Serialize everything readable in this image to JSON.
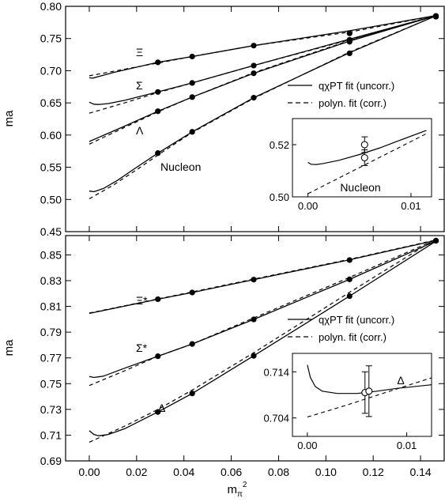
{
  "chart_data": [
    {
      "type": "line",
      "ylabel": "ma",
      "xlim": [
        -0.01,
        0.15
      ],
      "ylim": [
        0.45,
        0.8
      ],
      "yticks": [
        "0.45",
        "0.50",
        "0.55",
        "0.60",
        "0.65",
        "0.70",
        "0.75",
        "0.80"
      ],
      "legend_position": "right",
      "legend": [
        {
          "style": "solid",
          "label": "qχPT fit (uncorr.)"
        },
        {
          "style": "dashed",
          "label": "polyn. fit (corr.)"
        }
      ],
      "points_x": [
        0.029,
        0.0435,
        0.0695,
        0.11,
        0.1465
      ],
      "series": [
        {
          "name": "Ξ",
          "points_y": [
            0.713,
            0.722,
            0.739,
            0.758,
            0.784
          ],
          "solid": [
            [
              0.0,
              0.689
            ],
            [
              0.0015,
              0.6885
            ],
            [
              0.01,
              0.697
            ],
            [
              0.029,
              0.713
            ],
            [
              0.0435,
              0.722
            ],
            [
              0.0695,
              0.739
            ],
            [
              0.11,
              0.762
            ],
            [
              0.147,
              0.786
            ]
          ],
          "dashed": [
            [
              0.0,
              0.692
            ],
            [
              0.029,
              0.712
            ],
            [
              0.0435,
              0.722
            ],
            [
              0.0695,
              0.739
            ],
            [
              0.11,
              0.76
            ],
            [
              0.147,
              0.786
            ]
          ]
        },
        {
          "name": "Σ",
          "points_y": [
            0.667,
            0.681,
            0.708,
            0.748,
            0.785
          ],
          "solid": [
            [
              0.0,
              0.651
            ],
            [
              0.002,
              0.648
            ],
            [
              0.004,
              0.6475
            ],
            [
              0.008,
              0.649
            ],
            [
              0.015,
              0.654
            ],
            [
              0.029,
              0.667
            ],
            [
              0.0435,
              0.681
            ],
            [
              0.0695,
              0.708
            ],
            [
              0.11,
              0.749
            ],
            [
              0.147,
              0.786
            ]
          ],
          "dashed": [
            [
              0.0,
              0.634
            ],
            [
              0.015,
              0.65
            ],
            [
              0.029,
              0.666
            ],
            [
              0.0435,
              0.681
            ],
            [
              0.0695,
              0.708
            ],
            [
              0.11,
              0.748
            ],
            [
              0.147,
              0.786
            ]
          ]
        },
        {
          "name": "Λ",
          "points_y": [
            0.637,
            0.659,
            0.696,
            0.745,
            0.785
          ],
          "solid": [
            [
              0.0,
              0.59
            ],
            [
              0.015,
              0.614
            ],
            [
              0.029,
              0.637
            ],
            [
              0.0435,
              0.659
            ],
            [
              0.0695,
              0.696
            ],
            [
              0.11,
              0.746
            ],
            [
              0.147,
              0.786
            ]
          ],
          "dashed": [
            [
              0.0,
              0.586
            ],
            [
              0.015,
              0.612
            ],
            [
              0.029,
              0.636
            ],
            [
              0.0435,
              0.659
            ],
            [
              0.0695,
              0.697
            ],
            [
              0.11,
              0.747
            ],
            [
              0.147,
              0.786
            ]
          ]
        },
        {
          "name": "Nucleon",
          "points_y": [
            0.572,
            0.605,
            0.658,
            0.727,
            0.784
          ],
          "solid": [
            [
              0.0,
              0.513
            ],
            [
              0.002,
              0.512
            ],
            [
              0.006,
              0.517
            ],
            [
              0.012,
              0.53
            ],
            [
              0.02,
              0.55
            ],
            [
              0.029,
              0.572
            ],
            [
              0.0435,
              0.605
            ],
            [
              0.0695,
              0.658
            ],
            [
              0.11,
              0.728
            ],
            [
              0.147,
              0.786
            ]
          ],
          "dashed": [
            [
              0.0,
              0.501
            ],
            [
              0.01,
              0.522
            ],
            [
              0.02,
              0.546
            ],
            [
              0.029,
              0.569
            ],
            [
              0.0435,
              0.604
            ],
            [
              0.0695,
              0.657
            ],
            [
              0.11,
              0.729
            ],
            [
              0.147,
              0.786
            ]
          ]
        }
      ],
      "inset": {
        "label": "Nucleon",
        "xlim": [
          -0.0015,
          0.012
        ],
        "ylim": [
          0.5,
          0.53
        ],
        "xticks": [
          "0.00",
          "0.01"
        ],
        "yticks": [
          "0.50",
          "0.52"
        ],
        "solid": [
          [
            0.0,
            0.5132
          ],
          [
            0.0003,
            0.5125
          ],
          [
            0.0008,
            0.5124
          ],
          [
            0.0015,
            0.5128
          ],
          [
            0.003,
            0.514
          ],
          [
            0.005,
            0.5162
          ],
          [
            0.007,
            0.5188
          ],
          [
            0.009,
            0.5218
          ],
          [
            0.0115,
            0.5255
          ]
        ],
        "dashed": [
          [
            0.0,
            0.5012
          ],
          [
            0.004,
            0.5092
          ],
          [
            0.008,
            0.5172
          ],
          [
            0.0115,
            0.5242
          ]
        ],
        "points": [
          {
            "x": 0.0055,
            "y": 0.52,
            "err": 0.003
          },
          {
            "x": 0.0055,
            "y": 0.515,
            "err": 0.003
          }
        ]
      }
    },
    {
      "type": "line",
      "xlabel": "mπ²",
      "ylabel": "ma",
      "xlim": [
        -0.01,
        0.15
      ],
      "ylim": [
        0.69,
        0.865
      ],
      "xticks": [
        "0.00",
        "0.02",
        "0.04",
        "0.06",
        "0.08",
        "0.10",
        "0.12",
        "0.14"
      ],
      "yticks": [
        "0.69",
        "0.71",
        "0.73",
        "0.75",
        "0.77",
        "0.79",
        "0.81",
        "0.83",
        "0.85"
      ],
      "legend_position": "right",
      "legend": [
        {
          "style": "solid",
          "label": "qχPT fit (uncorr.)"
        },
        {
          "style": "dashed",
          "label": "polyn. fit (corr.)"
        }
      ],
      "points_x": [
        0.029,
        0.0435,
        0.0695,
        0.11,
        0.1465
      ],
      "series": [
        {
          "name": "Ξ*",
          "points_y": [
            0.8156,
            0.8208,
            0.8308,
            0.846,
            0.861
          ],
          "solid": [
            [
              0.0,
              0.8045
            ],
            [
              0.029,
              0.8156
            ],
            [
              0.0435,
              0.8208
            ],
            [
              0.0695,
              0.8308
            ],
            [
              0.11,
              0.8462
            ],
            [
              0.147,
              0.8615
            ]
          ],
          "dashed": [
            [
              0.0,
              0.8048
            ],
            [
              0.029,
              0.8158
            ],
            [
              0.0435,
              0.8212
            ],
            [
              0.0695,
              0.8312
            ],
            [
              0.11,
              0.8466
            ],
            [
              0.147,
              0.8618
            ]
          ]
        },
        {
          "name": "Σ*",
          "points_y": [
            0.7713,
            0.7808,
            0.7999,
            0.831,
            0.861
          ],
          "solid": [
            [
              0.0,
              0.7555
            ],
            [
              0.002,
              0.7548
            ],
            [
              0.006,
              0.7558
            ],
            [
              0.015,
              0.762
            ],
            [
              0.029,
              0.7713
            ],
            [
              0.0435,
              0.7808
            ],
            [
              0.0695,
              0.7999
            ],
            [
              0.11,
              0.831
            ],
            [
              0.147,
              0.8612
            ]
          ],
          "dashed": [
            [
              0.0,
              0.7485
            ],
            [
              0.015,
              0.76
            ],
            [
              0.029,
              0.7713
            ],
            [
              0.0435,
              0.7808
            ],
            [
              0.0695,
              0.801
            ],
            [
              0.11,
              0.8325
            ],
            [
              0.147,
              0.8622
            ]
          ]
        },
        {
          "name": "Δ",
          "points_y": [
            0.728,
            0.7424,
            0.7716,
            0.818,
            0.861
          ],
          "solid": [
            [
              0.0,
              0.7135
            ],
            [
              0.002,
              0.7105
            ],
            [
              0.004,
              0.7095
            ],
            [
              0.008,
              0.7105
            ],
            [
              0.015,
              0.715
            ],
            [
              0.029,
              0.728
            ],
            [
              0.0435,
              0.7424
            ],
            [
              0.0695,
              0.7716
            ],
            [
              0.11,
              0.818
            ],
            [
              0.147,
              0.8612
            ]
          ],
          "dashed": [
            [
              0.0,
              0.7045
            ],
            [
              0.015,
              0.717
            ],
            [
              0.029,
              0.73
            ],
            [
              0.0435,
              0.745
            ],
            [
              0.0695,
              0.774
            ],
            [
              0.11,
              0.821
            ],
            [
              0.147,
              0.863
            ]
          ]
        }
      ],
      "inset": {
        "label": "Δ",
        "xlim": [
          -0.0015,
          0.0125
        ],
        "ylim": [
          0.7,
          0.718
        ],
        "xticks": [
          "0.00",
          "0.01"
        ],
        "yticks": [
          "0.704",
          "0.714"
        ],
        "solid": [
          [
            0.0,
            0.7155
          ],
          [
            0.0003,
            0.7128
          ],
          [
            0.0008,
            0.7108
          ],
          [
            0.0015,
            0.7098
          ],
          [
            0.003,
            0.7093
          ],
          [
            0.005,
            0.7093
          ],
          [
            0.007,
            0.7098
          ],
          [
            0.009,
            0.7104
          ],
          [
            0.0125,
            0.7112
          ]
        ],
        "dashed": [
          [
            0.0,
            0.7042
          ],
          [
            0.004,
            0.7068
          ],
          [
            0.008,
            0.7096
          ],
          [
            0.0125,
            0.7127
          ]
        ],
        "points": [
          {
            "x": 0.0058,
            "y": 0.7095,
            "err": 0.0045
          },
          {
            "x": 0.0062,
            "y": 0.7098,
            "err": 0.0055
          }
        ]
      }
    }
  ]
}
